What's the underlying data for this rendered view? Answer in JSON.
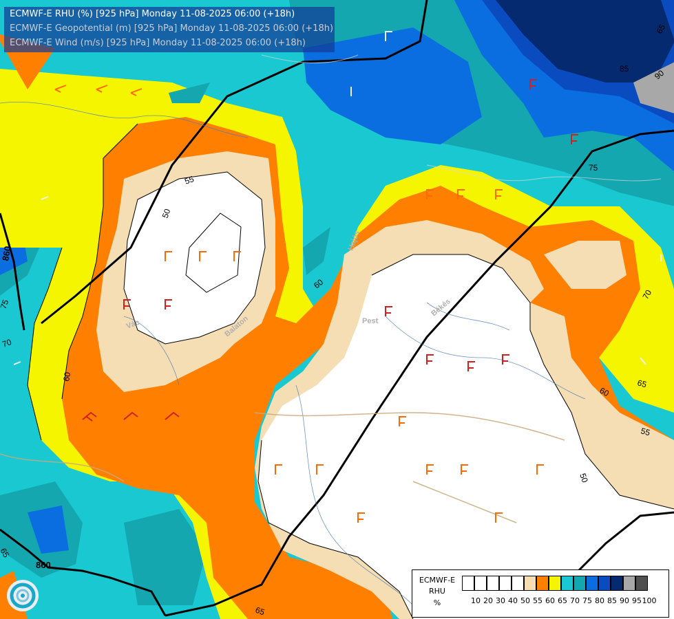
{
  "header": {
    "lines": [
      "ECMWF-E RHU (%) [925 hPa] Monday 11-08-2025 06:00 (+18h)",
      "ECMWF-E Geopotential (m) [925 hPa] Monday 11-08-2025 06:00 (+18h)",
      "ECMWF-E Wind (m/s) [925 hPa] Monday 11-08-2025 06:00 (+18h)"
    ],
    "line_colors": [
      "#ffffff",
      "#c8ccd8",
      "#c8ccd8"
    ]
  },
  "legend": {
    "title_lines": [
      "ECMWF-E",
      "RHU",
      "%"
    ],
    "levels": [
      "10",
      "20",
      "30",
      "40",
      "50",
      "55",
      "60",
      "65",
      "70",
      "75",
      "80",
      "85",
      "90",
      "95",
      "100"
    ],
    "colors": [
      "#ffffff",
      "#ffffff",
      "#ffffff",
      "#ffffff",
      "#ffffff",
      "#f5deb3",
      "#ff8000",
      "#f5f500",
      "#19c8d0",
      "#14a7b0",
      "#0a6ee0",
      "#0a4cc0",
      "#062a70",
      "#a8a8a8",
      "#505050"
    ]
  },
  "map": {
    "contour_labels": [
      "55",
      "50",
      "60",
      "70",
      "75",
      "65",
      "85",
      "90",
      "60",
      "65",
      "55",
      "50",
      "70",
      "75",
      "65",
      "60",
      "65"
    ],
    "geopotential_labels": [
      "860",
      "860"
    ],
    "place_labels": [
      "Pest",
      "Békés",
      "Hajós",
      "Vác",
      "Balaton"
    ]
  },
  "logo": {
    "icon": "ecmwf-swirl-logo"
  }
}
